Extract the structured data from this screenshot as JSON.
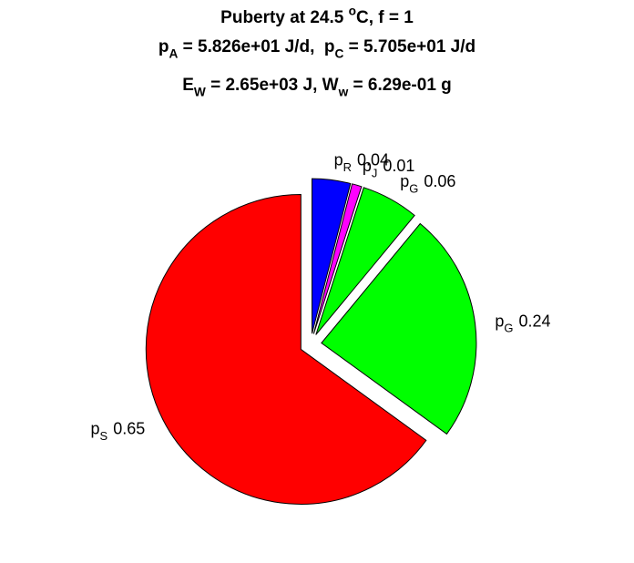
{
  "chart_data": {
    "type": "pie",
    "title": [
      [
        "Puberty at 24.5 ",
        {
          "text": "o",
          "script": "sup"
        },
        "C, f = 1"
      ],
      [
        "p",
        {
          "text": "A",
          "script": "sub"
        },
        " = 5.826e+01 J/d,  p",
        {
          "text": "C",
          "script": "sub"
        },
        " = 5.705e+01 J/d"
      ],
      [
        "E",
        {
          "text": "W",
          "script": "sub"
        },
        " = 2.65e+03 J, W",
        {
          "text": "w",
          "script": "sub"
        },
        " = 6.29e-01 g"
      ]
    ],
    "categories": [
      [
        "p",
        {
          "text": "R",
          "script": "sub"
        }
      ],
      [
        "p",
        {
          "text": "J",
          "script": "sub"
        }
      ],
      [
        "p",
        {
          "text": "G",
          "script": "sub"
        }
      ],
      [
        "p",
        {
          "text": "G",
          "script": "sub"
        }
      ],
      [
        "p",
        {
          "text": "S",
          "script": "sub"
        }
      ]
    ],
    "values": [
      0.04,
      0.01,
      0.06,
      0.24,
      0.65
    ],
    "colors": [
      "#0000ff",
      "#ff00ff",
      "#00ff00",
      "#00ff00",
      "#ff0000"
    ],
    "explode": true
  }
}
